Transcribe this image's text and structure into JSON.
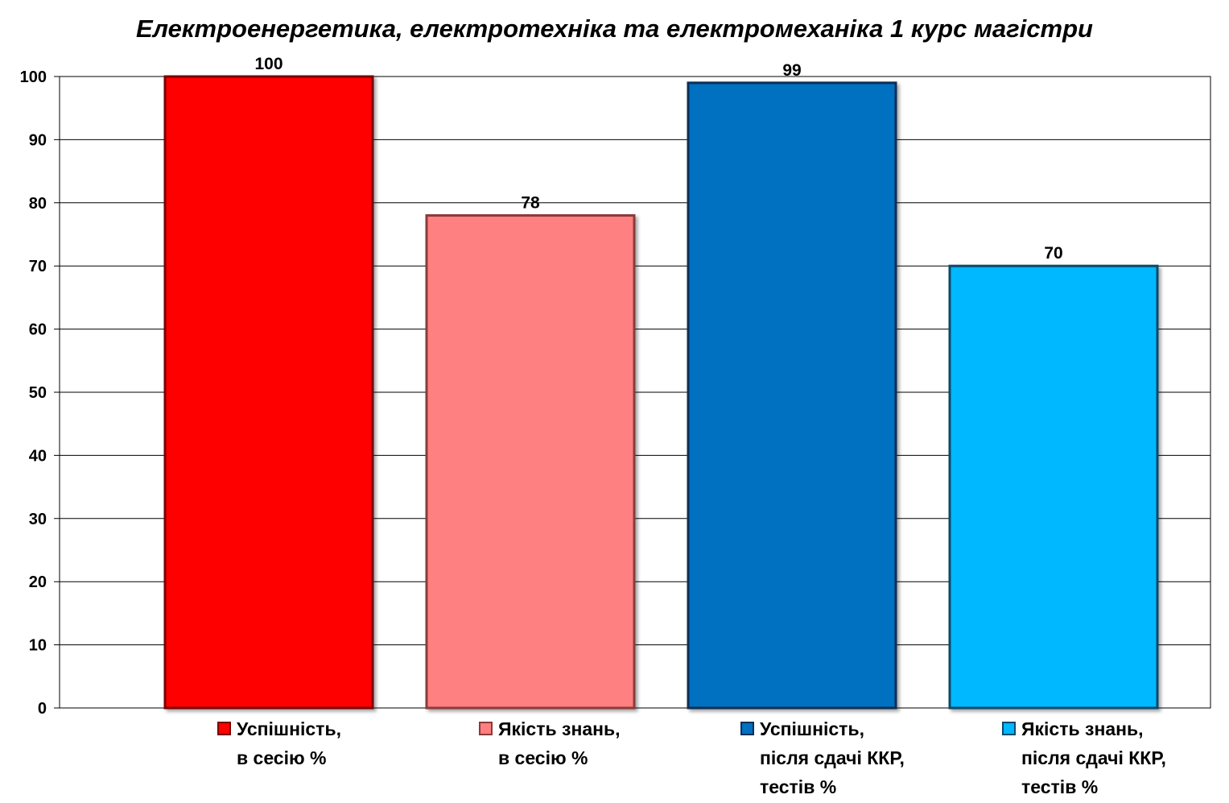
{
  "chart_data": {
    "type": "bar",
    "title": "Електроенергетика, електротехніка та електромеханіка 1 курс магістри",
    "xlabel": "",
    "ylabel": "",
    "ylim": [
      0,
      100
    ],
    "yticks": [
      0,
      10,
      20,
      30,
      40,
      50,
      60,
      70,
      80,
      90,
      100
    ],
    "grid": true,
    "legend_position": "bottom",
    "series": [
      {
        "name": "Успішність, в сесію %",
        "legend_lines": [
          "Успішність,",
          "в сесію %"
        ],
        "value": 100,
        "color": "#ff0000",
        "border": "#7a0000"
      },
      {
        "name": "Якість знань, в сесію %",
        "legend_lines": [
          "Якість знань,",
          "в сесію %"
        ],
        "value": 78,
        "color": "#ff8080",
        "border": "#8a3a3a"
      },
      {
        "name": "Успішність, після сдачі ККР, тестів %",
        "legend_lines": [
          "Успішність,",
          "після сдачі ККР,",
          "тестів %"
        ],
        "value": 99,
        "color": "#0070c0",
        "border": "#0b2f55"
      },
      {
        "name": "Якість знань, після сдачі ККР, тестів %",
        "legend_lines": [
          "Якість знань,",
          "після сдачі ККР,",
          "тестів %"
        ],
        "value": 70,
        "color": "#00b8ff",
        "border": "#0b4a6a"
      }
    ]
  }
}
